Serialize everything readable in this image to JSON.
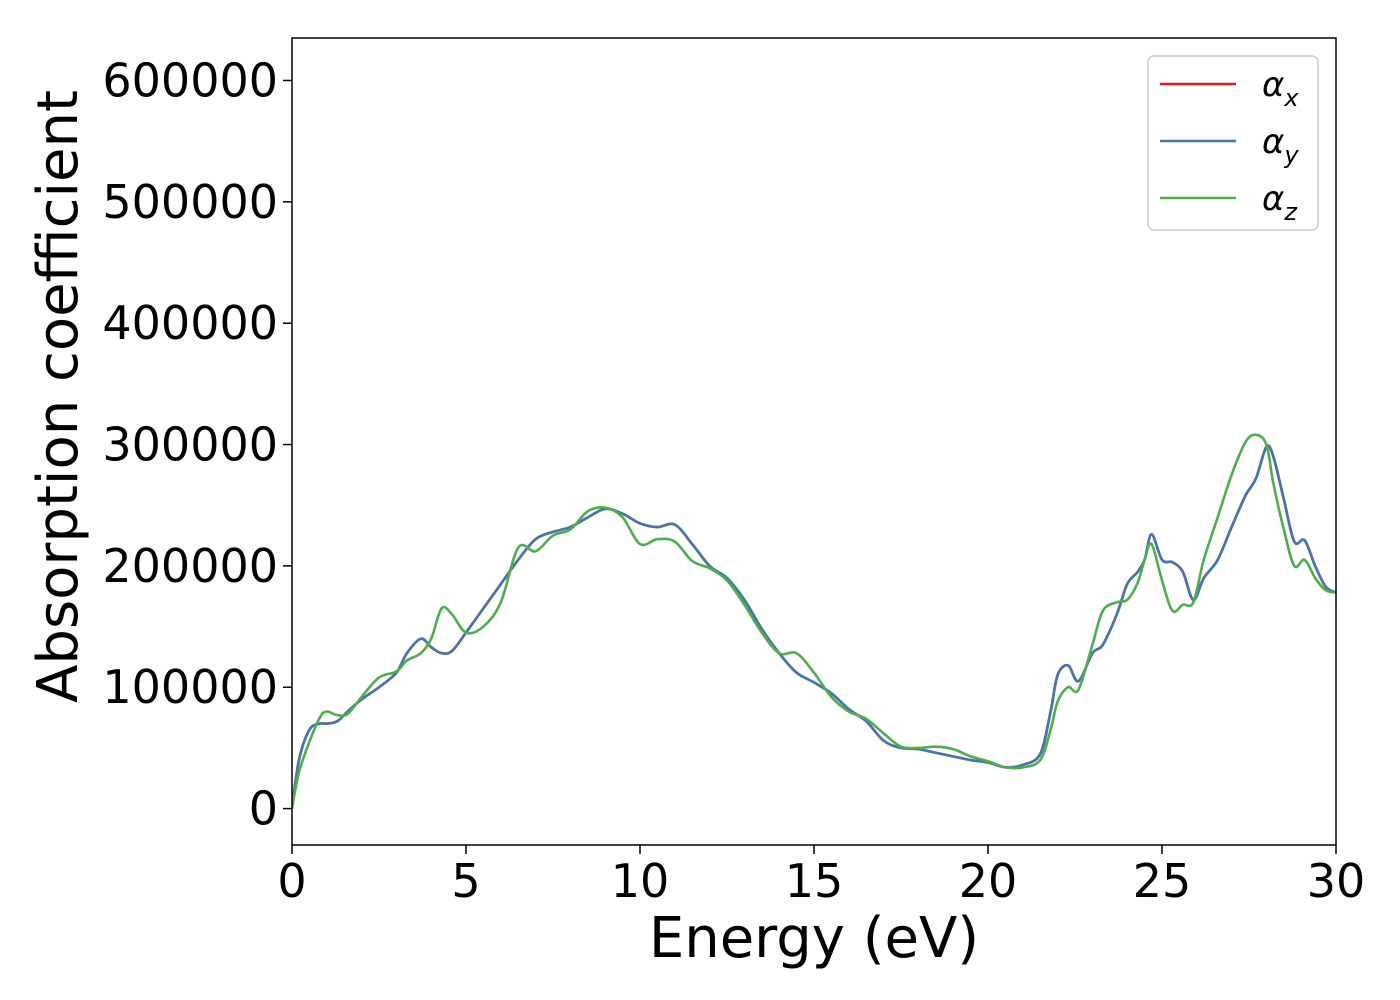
{
  "chart_data": {
    "type": "line",
    "xlabel": "Energy (eV)",
    "ylabel": "Absorption coefficient",
    "xlim": [
      0,
      30
    ],
    "ylim": [
      -30000,
      635000
    ],
    "xticks": [
      0,
      5,
      10,
      15,
      20,
      25,
      30
    ],
    "yticks": [
      0,
      100000,
      200000,
      300000,
      400000,
      500000,
      600000
    ],
    "xtick_labels": [
      "0",
      "5",
      "10",
      "15",
      "20",
      "25",
      "30"
    ],
    "ytick_labels": [
      "0",
      "100000",
      "200000",
      "300000",
      "400000",
      "500000",
      "600000"
    ],
    "grid": false,
    "legend_position": "top-right",
    "series": [
      {
        "name": "αx",
        "name_base": "α",
        "name_sub": "x",
        "color": "#e41a1c",
        "x": [
          0,
          0.2,
          0.5,
          0.8,
          1.0,
          1.3,
          1.6,
          2.0,
          2.5,
          3.0,
          3.3,
          3.7,
          4.0,
          4.3,
          4.6,
          5.0,
          5.5,
          6.0,
          6.5,
          7.0,
          7.5,
          8.0,
          8.5,
          9.0,
          9.5,
          10.0,
          10.5,
          11.0,
          11.5,
          12.0,
          12.5,
          13.0,
          13.5,
          14.0,
          14.5,
          15.0,
          15.5,
          16.0,
          16.5,
          17.0,
          17.5,
          18.0,
          18.5,
          19.0,
          19.5,
          20.0,
          20.5,
          21.0,
          21.5,
          21.8,
          22.0,
          22.3,
          22.6,
          23.0,
          23.3,
          23.7,
          24.0,
          24.3,
          24.5,
          24.7,
          25.0,
          25.3,
          25.6,
          25.9,
          26.2,
          26.6,
          27.0,
          27.4,
          27.7,
          28.0,
          28.2,
          28.5,
          28.8,
          29.1,
          29.4,
          29.7,
          30.0
        ],
        "values": [
          0,
          40000,
          65000,
          70000,
          70000,
          72000,
          80000,
          90000,
          100000,
          112000,
          128000,
          140000,
          133000,
          128000,
          130000,
          145000,
          165000,
          185000,
          205000,
          222000,
          228000,
          232000,
          240000,
          247000,
          243000,
          235000,
          232000,
          234000,
          218000,
          200000,
          190000,
          172000,
          148000,
          128000,
          112000,
          104000,
          95000,
          82000,
          72000,
          56000,
          50000,
          49000,
          46000,
          43000,
          40000,
          38000,
          34000,
          36000,
          45000,
          80000,
          110000,
          118000,
          105000,
          128000,
          135000,
          160000,
          185000,
          195000,
          205000,
          226000,
          205000,
          203000,
          195000,
          172000,
          190000,
          205000,
          232000,
          258000,
          272000,
          298000,
          290000,
          255000,
          220000,
          221000,
          200000,
          183000,
          178000
        ]
      },
      {
        "name": "αy",
        "name_base": "α",
        "name_sub": "y",
        "color": "#4178b4",
        "x": [
          0,
          0.2,
          0.5,
          0.8,
          1.0,
          1.3,
          1.6,
          2.0,
          2.5,
          3.0,
          3.3,
          3.7,
          4.0,
          4.3,
          4.6,
          5.0,
          5.5,
          6.0,
          6.5,
          7.0,
          7.5,
          8.0,
          8.5,
          9.0,
          9.5,
          10.0,
          10.5,
          11.0,
          11.5,
          12.0,
          12.5,
          13.0,
          13.5,
          14.0,
          14.5,
          15.0,
          15.5,
          16.0,
          16.5,
          17.0,
          17.5,
          18.0,
          18.5,
          19.0,
          19.5,
          20.0,
          20.5,
          21.0,
          21.5,
          21.8,
          22.0,
          22.3,
          22.6,
          23.0,
          23.3,
          23.7,
          24.0,
          24.3,
          24.5,
          24.7,
          25.0,
          25.3,
          25.6,
          25.9,
          26.2,
          26.6,
          27.0,
          27.4,
          27.7,
          28.0,
          28.2,
          28.5,
          28.8,
          29.1,
          29.4,
          29.7,
          30.0
        ],
        "values": [
          0,
          40000,
          65000,
          70000,
          70000,
          72000,
          80000,
          90000,
          100000,
          112000,
          128000,
          140000,
          133000,
          128000,
          130000,
          145000,
          165000,
          185000,
          205000,
          222000,
          228000,
          232000,
          240000,
          247000,
          243000,
          235000,
          232000,
          234000,
          218000,
          200000,
          190000,
          172000,
          148000,
          128000,
          112000,
          104000,
          95000,
          82000,
          72000,
          56000,
          50000,
          49000,
          46000,
          43000,
          40000,
          38000,
          34000,
          36000,
          45000,
          80000,
          110000,
          118000,
          105000,
          128000,
          135000,
          160000,
          185000,
          195000,
          205000,
          226000,
          205000,
          203000,
          195000,
          172000,
          190000,
          205000,
          232000,
          258000,
          272000,
          298000,
          290000,
          255000,
          220000,
          221000,
          200000,
          183000,
          178000
        ]
      },
      {
        "name": "αz",
        "name_base": "α",
        "name_sub": "z",
        "color": "#4daf4a",
        "x": [
          0,
          0.2,
          0.5,
          0.8,
          1.0,
          1.3,
          1.6,
          2.0,
          2.5,
          3.0,
          3.3,
          3.7,
          4.0,
          4.3,
          4.6,
          5.0,
          5.5,
          6.0,
          6.5,
          7.0,
          7.5,
          8.0,
          8.5,
          9.0,
          9.5,
          10.0,
          10.5,
          11.0,
          11.5,
          12.0,
          12.5,
          13.0,
          13.5,
          14.0,
          14.5,
          15.0,
          15.5,
          16.0,
          16.5,
          17.0,
          17.5,
          18.0,
          18.5,
          19.0,
          19.5,
          20.0,
          20.5,
          21.0,
          21.5,
          21.8,
          22.0,
          22.3,
          22.6,
          23.0,
          23.3,
          23.7,
          24.0,
          24.3,
          24.5,
          24.7,
          25.0,
          25.3,
          25.6,
          25.9,
          26.2,
          26.6,
          27.0,
          27.4,
          27.7,
          28.0,
          28.2,
          28.5,
          28.8,
          29.1,
          29.4,
          29.7,
          30.0
        ],
        "values": [
          0,
          30000,
          55000,
          75000,
          80000,
          77000,
          78000,
          92000,
          108000,
          113000,
          122000,
          128000,
          140000,
          165000,
          160000,
          145000,
          150000,
          170000,
          215000,
          212000,
          225000,
          230000,
          245000,
          248000,
          240000,
          218000,
          222000,
          220000,
          204000,
          198000,
          188000,
          168000,
          145000,
          128000,
          128000,
          112000,
          92000,
          80000,
          74000,
          62000,
          51000,
          50000,
          51000,
          49000,
          43000,
          39000,
          34000,
          34000,
          40000,
          65000,
          88000,
          100000,
          98000,
          135000,
          163000,
          170000,
          172000,
          186000,
          205000,
          218000,
          188000,
          163000,
          168000,
          170000,
          205000,
          240000,
          275000,
          302000,
          308000,
          300000,
          268000,
          230000,
          200000,
          205000,
          190000,
          180000,
          178000
        ]
      }
    ]
  }
}
